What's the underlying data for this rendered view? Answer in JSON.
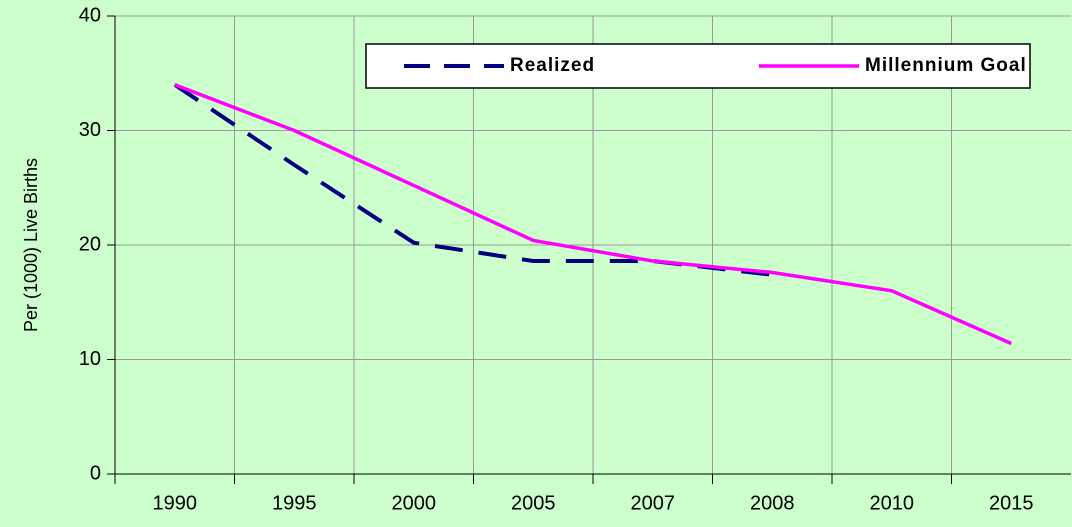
{
  "chart_data": {
    "type": "line",
    "y_label": "Per (1000) Live Births",
    "categories": [
      "1990",
      "1995",
      "2000",
      "2005",
      "2007",
      "2008",
      "2010",
      "2015"
    ],
    "series": [
      {
        "name": "Realized",
        "color": "#000080",
        "dash": true,
        "values": [
          34,
          27,
          20.2,
          18.6,
          18.6,
          17.4,
          null,
          null
        ]
      },
      {
        "name": "Millennium Goal",
        "color": "#ff00ff",
        "dash": false,
        "values": [
          34,
          30,
          25.2,
          20.4,
          18.6,
          17.6,
          16,
          11.4
        ]
      }
    ],
    "ylim": [
      0,
      40
    ],
    "yticks": [
      0,
      10,
      20,
      30,
      40
    ],
    "grid": true,
    "legend": "top-right"
  }
}
